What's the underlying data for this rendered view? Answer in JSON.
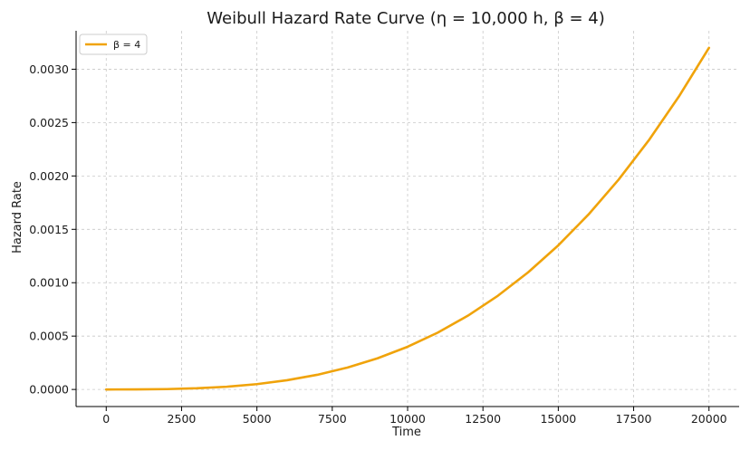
{
  "chart_data": {
    "type": "line",
    "title": "Weibull Hazard Rate Curve (η = 10,000 h, β = 4)",
    "xlabel": "Time",
    "ylabel": "Hazard Rate",
    "xlim": [
      -1000,
      21000
    ],
    "ylim": [
      -0.00016,
      0.00336
    ],
    "xticks": [
      0,
      2500,
      5000,
      7500,
      10000,
      12500,
      15000,
      17500,
      20000
    ],
    "xtick_labels": [
      "0",
      "2500",
      "5000",
      "7500",
      "10000",
      "12500",
      "15000",
      "17500",
      "20000"
    ],
    "yticks": [
      0,
      0.0005,
      0.001,
      0.0015,
      0.002,
      0.0025,
      0.003
    ],
    "ytick_labels": [
      "0.0000",
      "0.0005",
      "0.0010",
      "0.0015",
      "0.0020",
      "0.0025",
      "0.0030"
    ],
    "grid": true,
    "legend_position": "top-left",
    "series": [
      {
        "name": "β = 4",
        "color": "#f0a30a",
        "x": [
          0,
          1000,
          2000,
          3000,
          4000,
          5000,
          6000,
          7000,
          8000,
          9000,
          10000,
          11000,
          12000,
          13000,
          14000,
          15000,
          16000,
          17000,
          18000,
          19000,
          20000
        ],
        "y": [
          0,
          4e-07,
          3.2e-06,
          1.08e-05,
          2.56e-05,
          5e-05,
          8.64e-05,
          0.0001372,
          0.0002048,
          0.0002916,
          0.0004,
          0.0005324,
          0.0006912,
          0.0008788,
          0.0010976,
          0.00135,
          0.0016384,
          0.0019652,
          0.0023328,
          0.0027436,
          0.0032
        ]
      }
    ]
  }
}
